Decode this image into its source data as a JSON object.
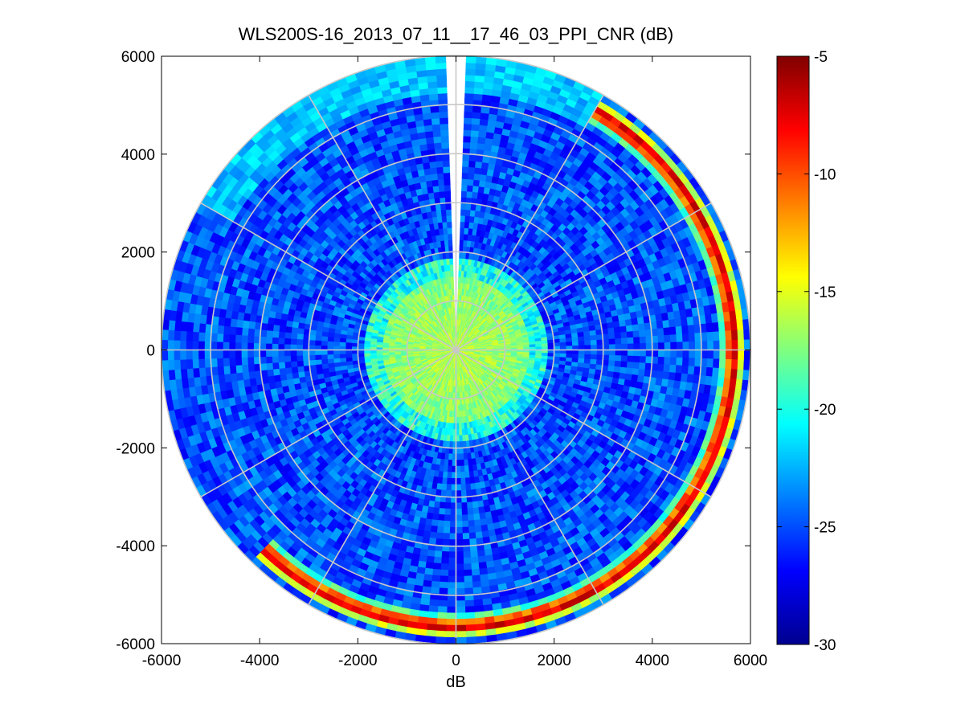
{
  "chart_data": {
    "type": "heatmap",
    "subtype": "polar-ppi",
    "title": "WLS200S-16_2013_07_11__17_46_03_PPI_CNR (dB)",
    "xlabel": "dB",
    "ylabel": "",
    "xlim": [
      -6000,
      6000
    ],
    "ylim": [
      -6000,
      6000
    ],
    "xticks": [
      -6000,
      -4000,
      -2000,
      0,
      2000,
      4000,
      6000
    ],
    "yticks": [
      6000,
      4000,
      2000,
      0,
      -2000,
      -4000,
      -6000
    ],
    "xtick_labels": [
      "-6000",
      "-4000",
      "-2000",
      "0",
      "2000",
      "4000",
      "6000"
    ],
    "ytick_labels": [
      "6000",
      "4000",
      "2000",
      "0",
      "-2000",
      "-4000",
      "-6000"
    ],
    "max_range_m": 6000,
    "range_rings_m": [
      1000,
      2000,
      3000,
      4000,
      5000,
      6000
    ],
    "spoke_angles_deg": [
      0,
      30,
      60,
      90,
      120,
      150,
      180,
      210,
      240,
      270,
      300,
      330
    ],
    "grid": true,
    "colorbar": {
      "clim": [
        -30,
        -5
      ],
      "ticks": [
        -5,
        -10,
        -15,
        -20,
        -25,
        -30
      ],
      "tick_labels": [
        "-5",
        "-10",
        "-15",
        "-20",
        "-25",
        "-30"
      ],
      "colormap": "jet"
    },
    "field_description_values_db": {
      "near_range_core": -16,
      "background": -25,
      "far_ring_band": -10,
      "blind_sector_azimuth_deg": [
        -2,
        2
      ]
    }
  }
}
